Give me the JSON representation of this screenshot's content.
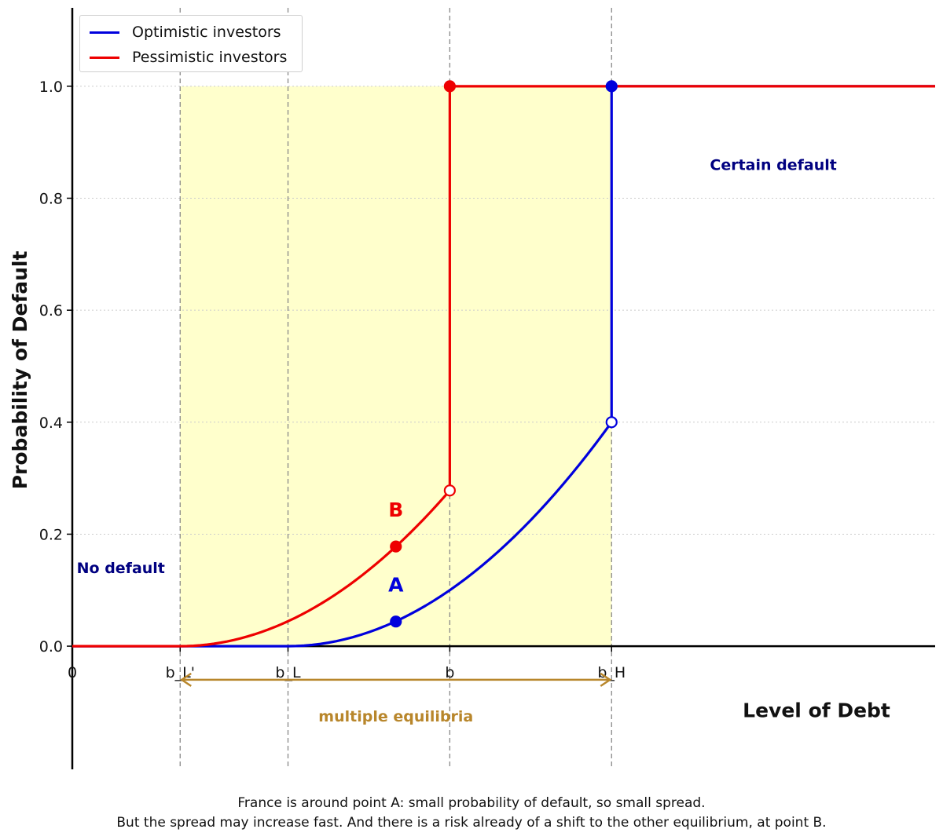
{
  "chart_data": {
    "type": "line",
    "title": "",
    "xlabel": "Level of Debt",
    "ylabel": "Probability of Default",
    "xlim": [
      0,
      8
    ],
    "ylim": [
      -0.22,
      1.14
    ],
    "grid": "horizontal dotted",
    "legend_position": "top-left",
    "y_ticks": [
      0.0,
      0.2,
      0.4,
      0.6,
      0.8,
      1.0
    ],
    "y_tick_labels": [
      "0.0",
      "0.2",
      "0.4",
      "0.6",
      "0.8",
      "1.0"
    ],
    "x_ticks": [
      0,
      1,
      2,
      3.5,
      5
    ],
    "x_tick_labels": [
      "0",
      "b_L'",
      "b_L",
      "b",
      "b_H"
    ],
    "vlines": [
      1,
      2,
      3.5,
      5
    ],
    "shaded_region": {
      "x": [
        1,
        5
      ],
      "y": [
        0,
        1
      ],
      "color": "#ffffcc"
    },
    "series": [
      {
        "name": "Optimistic investors",
        "color": "#0000dd",
        "x": [
          0,
          2,
          2.5,
          3,
          3.5,
          4,
          4.5,
          5,
          5,
          8
        ],
        "y": [
          0,
          0,
          0.011,
          0.044,
          0.1,
          0.178,
          0.278,
          0.4,
          1.0,
          1.0
        ]
      },
      {
        "name": "Pessimistic investors",
        "color": "#ee0000",
        "x": [
          0,
          1,
          1.5,
          2,
          2.5,
          3,
          3.5,
          3.5,
          8
        ],
        "y": [
          0,
          0,
          0.011,
          0.044,
          0.1,
          0.178,
          0.278,
          1.0,
          1.0
        ]
      }
    ],
    "points": [
      {
        "x": 3.0,
        "y": 0.044,
        "filled": true,
        "color": "#0000dd",
        "label": "A"
      },
      {
        "x": 3.0,
        "y": 0.178,
        "filled": true,
        "color": "#ee0000",
        "label": "B"
      },
      {
        "x": 3.5,
        "y": 0.278,
        "filled": false,
        "color": "#ee0000"
      },
      {
        "x": 3.5,
        "y": 1.0,
        "filled": true,
        "color": "#ee0000"
      },
      {
        "x": 5.0,
        "y": 0.4,
        "filled": false,
        "color": "#0000dd"
      },
      {
        "x": 5.0,
        "y": 1.0,
        "filled": true,
        "color": "#0000dd"
      }
    ],
    "annotations": [
      {
        "text": "No default",
        "x": 0.45,
        "y": 0.14,
        "color": "#000080"
      },
      {
        "text": "Certain default",
        "x": 6.5,
        "y": 0.86,
        "color": "#000080"
      },
      {
        "text": "multiple equilibria",
        "x": 3.0,
        "y": -0.125,
        "color": "#b8862b"
      }
    ],
    "range_arrow": {
      "from": 1,
      "to": 5,
      "y": -0.06,
      "color": "#b8862b"
    }
  },
  "caption": {
    "line1": "France is around point A: small probability of default, so small spread.",
    "line2": "But the spread may increase fast. And there is a risk already of a shift to the other equilibrium, at point B."
  },
  "legend": {
    "items": [
      {
        "label": "Optimistic investors",
        "color": "#0000dd"
      },
      {
        "label": "Pessimistic investors",
        "color": "#ee0000"
      }
    ]
  }
}
